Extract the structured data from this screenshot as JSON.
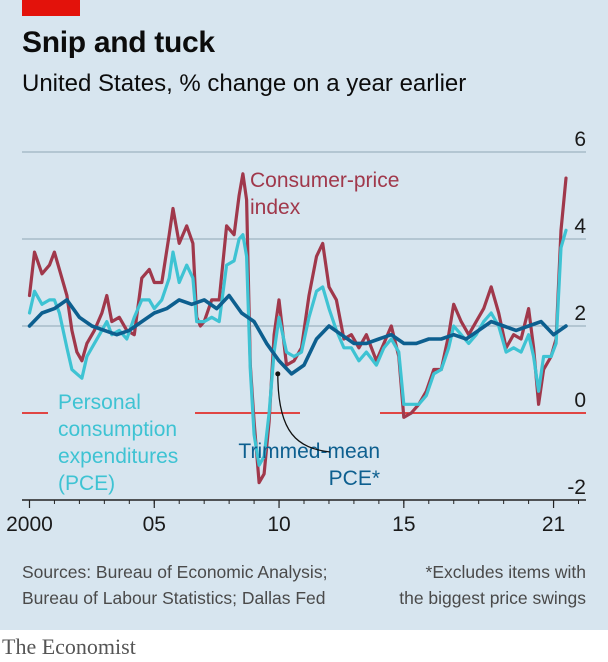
{
  "header": {
    "title": "Snip and tuck",
    "subtitle": "United States, % change on a year earlier"
  },
  "footer": {
    "source_line1": "Sources: Bureau of Economic Analysis;",
    "source_line2": "Bureau of Labour Statistics; Dallas Fed",
    "footnote_line1": "*Excludes items with",
    "footnote_line2": "the biggest price swings",
    "brand": "The Economist"
  },
  "colors": {
    "cpi": "#a0384b",
    "pce": "#3ec3d3",
    "trimmed": "#0d5f8f",
    "zero_line": "#e3120b",
    "grid": "#8fa6b5"
  },
  "chart_data": {
    "type": "line",
    "title": "Snip and tuck",
    "subtitle": "United States, % change on a year earlier",
    "xlabel": "",
    "ylabel": "",
    "ylim": [
      -2,
      6
    ],
    "xlim": [
      1999.7,
      2022.3
    ],
    "yticks": [
      "6",
      "4",
      "2",
      "0",
      "-2"
    ],
    "xticks": [
      {
        "x": 2000,
        "label": "2000"
      },
      {
        "x": 2005,
        "label": "05"
      },
      {
        "x": 2010,
        "label": "10"
      },
      {
        "x": 2015,
        "label": "15"
      },
      {
        "x": 2021,
        "label": "21"
      }
    ],
    "grid": true,
    "series": [
      {
        "name": "Consumer-price index",
        "name_lines": [
          "Consumer-price",
          "index"
        ],
        "key": "cpi",
        "x": [
          2000.0,
          2000.2,
          2000.5,
          2000.8,
          2001.0,
          2001.2,
          2001.5,
          2001.7,
          2001.9,
          2002.1,
          2002.3,
          2002.6,
          2002.9,
          2003.1,
          2003.3,
          2003.6,
          2003.9,
          2004.2,
          2004.5,
          2004.8,
          2005.0,
          2005.3,
          2005.6,
          2005.75,
          2006.0,
          2006.3,
          2006.55,
          2006.7,
          2006.85,
          2007.0,
          2007.3,
          2007.6,
          2007.9,
          2008.2,
          2008.4,
          2008.55,
          2008.7,
          2008.85,
          2009.0,
          2009.2,
          2009.4,
          2009.6,
          2009.8,
          2010.0,
          2010.3,
          2010.6,
          2010.9,
          2011.2,
          2011.5,
          2011.75,
          2012.0,
          2012.3,
          2012.6,
          2012.9,
          2013.2,
          2013.5,
          2013.9,
          2014.2,
          2014.5,
          2014.8,
          2015.0,
          2015.3,
          2015.6,
          2015.9,
          2016.2,
          2016.5,
          2016.8,
          2017.0,
          2017.3,
          2017.6,
          2017.9,
          2018.2,
          2018.5,
          2018.8,
          2019.1,
          2019.4,
          2019.7,
          2020.0,
          2020.2,
          2020.4,
          2020.6,
          2020.9,
          2021.1,
          2021.3,
          2021.5
        ],
        "values": [
          2.7,
          3.7,
          3.2,
          3.4,
          3.7,
          3.3,
          2.7,
          1.9,
          1.4,
          1.2,
          1.6,
          1.9,
          2.3,
          2.7,
          2.1,
          2.2,
          1.9,
          1.8,
          3.1,
          3.3,
          3.0,
          3.0,
          4.1,
          4.7,
          3.9,
          4.3,
          3.9,
          2.2,
          2.0,
          2.1,
          2.6,
          2.6,
          4.3,
          4.1,
          5.0,
          5.5,
          4.9,
          1.1,
          -0.2,
          -1.6,
          -1.4,
          -0.2,
          1.8,
          2.6,
          1.1,
          1.2,
          1.5,
          2.7,
          3.6,
          3.9,
          2.9,
          2.6,
          1.7,
          1.8,
          1.5,
          1.8,
          1.2,
          1.6,
          2.0,
          1.3,
          -0.1,
          0.0,
          0.2,
          0.5,
          1.0,
          1.0,
          1.8,
          2.5,
          2.1,
          1.8,
          2.1,
          2.4,
          2.9,
          2.3,
          1.5,
          1.8,
          1.7,
          2.4,
          1.5,
          0.2,
          1.0,
          1.3,
          1.7,
          4.2,
          5.4
        ]
      },
      {
        "name": "Personal consumption expenditures (PCE)",
        "name_lines": [
          "Personal",
          "consumption",
          "expenditures",
          "(PCE)"
        ],
        "key": "pce",
        "x": [
          2000.0,
          2000.2,
          2000.5,
          2000.8,
          2001.0,
          2001.2,
          2001.5,
          2001.7,
          2001.9,
          2002.1,
          2002.3,
          2002.6,
          2002.9,
          2003.1,
          2003.3,
          2003.6,
          2003.9,
          2004.2,
          2004.5,
          2004.8,
          2005.0,
          2005.3,
          2005.6,
          2005.75,
          2006.0,
          2006.3,
          2006.55,
          2006.7,
          2006.85,
          2007.0,
          2007.3,
          2007.6,
          2007.9,
          2008.2,
          2008.4,
          2008.55,
          2008.7,
          2008.85,
          2009.0,
          2009.2,
          2009.4,
          2009.6,
          2009.8,
          2010.0,
          2010.3,
          2010.6,
          2010.9,
          2011.2,
          2011.5,
          2011.75,
          2012.0,
          2012.3,
          2012.6,
          2012.9,
          2013.2,
          2013.5,
          2013.9,
          2014.2,
          2014.5,
          2014.8,
          2015.0,
          2015.3,
          2015.6,
          2015.9,
          2016.2,
          2016.5,
          2016.8,
          2017.0,
          2017.3,
          2017.6,
          2017.9,
          2018.2,
          2018.5,
          2018.8,
          2019.1,
          2019.4,
          2019.7,
          2020.0,
          2020.2,
          2020.4,
          2020.6,
          2020.9,
          2021.1,
          2021.3,
          2021.5
        ],
        "values": [
          2.3,
          2.8,
          2.5,
          2.6,
          2.6,
          2.3,
          1.5,
          1.0,
          0.9,
          0.8,
          1.3,
          1.6,
          1.9,
          2.1,
          1.8,
          1.9,
          1.7,
          2.2,
          2.6,
          2.6,
          2.4,
          2.6,
          3.1,
          3.7,
          3.0,
          3.4,
          3.1,
          2.1,
          2.1,
          2.1,
          2.2,
          2.1,
          3.4,
          3.5,
          4.0,
          4.1,
          3.6,
          1.0,
          -0.5,
          -1.2,
          -1.0,
          0.0,
          1.4,
          2.2,
          1.4,
          1.3,
          1.4,
          2.2,
          2.8,
          2.9,
          2.4,
          1.9,
          1.5,
          1.5,
          1.2,
          1.4,
          1.1,
          1.5,
          1.7,
          1.4,
          0.2,
          0.2,
          0.2,
          0.4,
          0.9,
          1.0,
          1.5,
          2.0,
          1.8,
          1.6,
          1.8,
          2.1,
          2.3,
          2.0,
          1.4,
          1.5,
          1.4,
          1.8,
          1.3,
          0.5,
          1.3,
          1.3,
          1.6,
          3.8,
          4.2
        ]
      },
      {
        "name": "Trimmed-mean PCE*",
        "name_lines": [
          "Trimmed-mean",
          "PCE*"
        ],
        "key": "trimmed",
        "x": [
          2000.0,
          2000.5,
          2001.0,
          2001.5,
          2002.0,
          2002.5,
          2003.0,
          2003.5,
          2004.0,
          2004.5,
          2005.0,
          2005.5,
          2006.0,
          2006.5,
          2007.0,
          2007.5,
          2008.0,
          2008.5,
          2009.0,
          2009.5,
          2010.0,
          2010.5,
          2011.0,
          2011.5,
          2012.0,
          2012.5,
          2013.0,
          2013.5,
          2014.0,
          2014.5,
          2015.0,
          2015.5,
          2016.0,
          2016.5,
          2017.0,
          2017.5,
          2018.0,
          2018.5,
          2019.0,
          2019.5,
          2020.0,
          2020.5,
          2021.0,
          2021.5
        ],
        "values": [
          2.0,
          2.3,
          2.4,
          2.6,
          2.2,
          2.0,
          1.9,
          1.8,
          1.9,
          2.1,
          2.3,
          2.4,
          2.6,
          2.5,
          2.6,
          2.4,
          2.7,
          2.3,
          2.1,
          1.6,
          1.2,
          0.9,
          1.1,
          1.7,
          2.0,
          1.8,
          1.6,
          1.6,
          1.7,
          1.8,
          1.6,
          1.6,
          1.7,
          1.7,
          1.8,
          1.7,
          1.9,
          2.1,
          2.0,
          1.9,
          2.0,
          2.1,
          1.8,
          2.0
        ]
      }
    ]
  }
}
